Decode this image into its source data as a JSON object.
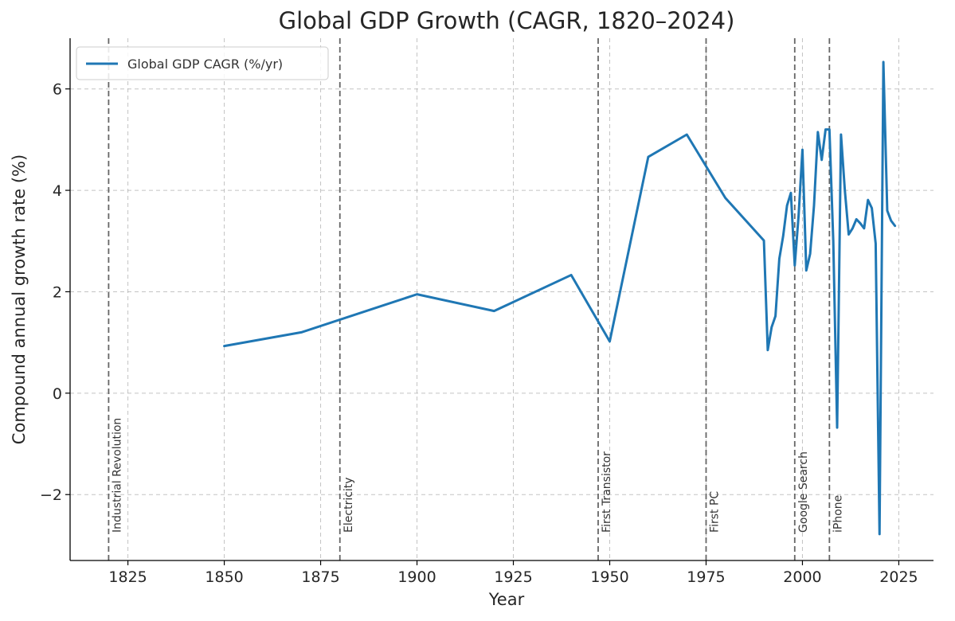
{
  "chart_data": {
    "type": "line",
    "title": "Global GDP Growth (CAGR, 1820–2024)",
    "xlabel": "Year",
    "ylabel": "Compound annual growth rate (%)",
    "xlim": [
      1810,
      2034
    ],
    "ylim": [
      -3.3,
      7.0
    ],
    "xticks": [
      1825,
      1850,
      1875,
      1900,
      1925,
      1950,
      1975,
      2000,
      2025
    ],
    "yticks": [
      -2,
      0,
      2,
      4,
      6
    ],
    "ytick_labels": [
      "−2",
      "0",
      "2",
      "4",
      "6"
    ],
    "grid": true,
    "legend": "top-left",
    "series": [
      {
        "name": "Global GDP CAGR (%/yr)",
        "color": "#1f77b4",
        "x": [
          1850,
          1870,
          1900,
          1920,
          1940,
          1950,
          1960,
          1970,
          1980,
          1990,
          1991,
          1992,
          1993,
          1994,
          1995,
          1996,
          1997,
          1998,
          1999,
          2000,
          2001,
          2002,
          2003,
          2004,
          2005,
          2006,
          2007,
          2008,
          2009,
          2010,
          2011,
          2012,
          2013,
          2014,
          2015,
          2016,
          2017,
          2018,
          2019,
          2020,
          2021,
          2022,
          2023,
          2024
        ],
        "y": [
          0.93,
          1.2,
          1.95,
          1.62,
          2.33,
          1.02,
          4.66,
          5.1,
          3.85,
          3.01,
          0.85,
          1.3,
          1.52,
          2.65,
          3.1,
          3.7,
          3.95,
          2.52,
          3.5,
          4.8,
          2.42,
          2.75,
          3.7,
          5.15,
          4.6,
          5.2,
          5.2,
          3.0,
          -0.68,
          5.1,
          4.0,
          3.13,
          3.25,
          3.43,
          3.35,
          3.25,
          3.81,
          3.65,
          2.95,
          -2.78,
          6.53,
          3.6,
          3.4,
          3.3
        ]
      }
    ],
    "annotations": [
      {
        "x": 1820,
        "label": "Industrial Revolution"
      },
      {
        "x": 1880,
        "label": "Electricity"
      },
      {
        "x": 1947,
        "label": "First Transistor"
      },
      {
        "x": 1975,
        "label": "First PC"
      },
      {
        "x": 1998,
        "label": "Google Search"
      },
      {
        "x": 2007,
        "label": "iPhone"
      }
    ]
  }
}
